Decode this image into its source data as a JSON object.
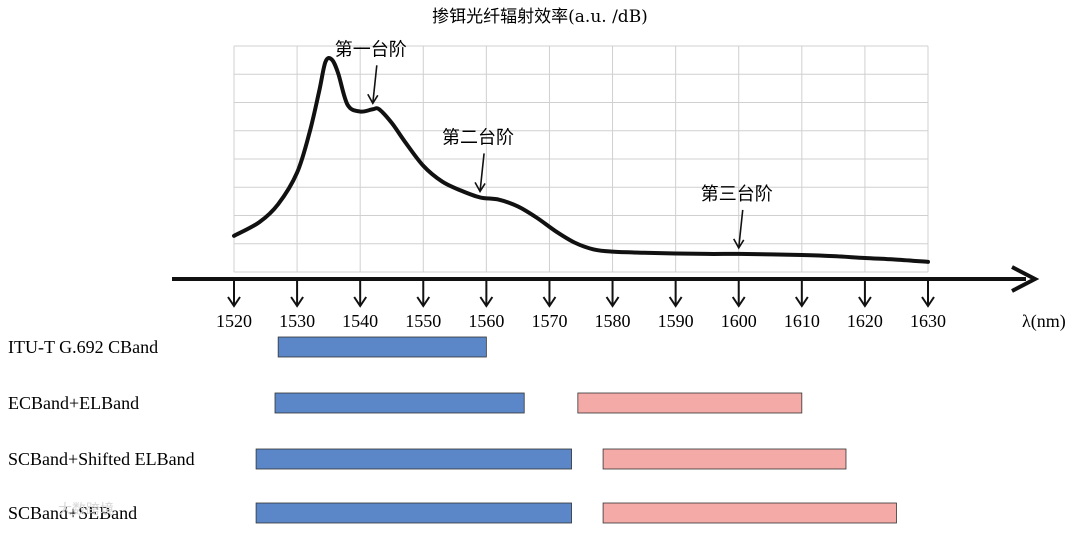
{
  "chart_data": {
    "type": "line",
    "title": "掺铒光纤辐射效率(a.u. /dB)",
    "xlabel": "λ(nm)",
    "ylabel": "",
    "x_ticks": [
      1520,
      1530,
      1540,
      1550,
      1560,
      1570,
      1580,
      1590,
      1600,
      1610,
      1620,
      1630
    ],
    "xlim": [
      1520,
      1630
    ],
    "ylim": [
      0,
      1
    ],
    "grid": true,
    "series": [
      {
        "x": [
          1520,
          1524,
          1527,
          1530,
          1532,
          1533.5,
          1534.5,
          1535.5,
          1536.5,
          1538,
          1540,
          1542,
          1543,
          1545,
          1547,
          1550,
          1553,
          1556,
          1559,
          1562,
          1565,
          1568,
          1571,
          1574,
          1577,
          1580,
          1585,
          1590,
          1595,
          1600,
          1605,
          1610,
          1615,
          1620,
          1625,
          1630
        ],
        "values": [
          0.16,
          0.22,
          0.3,
          0.44,
          0.62,
          0.8,
          0.93,
          0.94,
          0.88,
          0.74,
          0.71,
          0.72,
          0.72,
          0.66,
          0.58,
          0.47,
          0.4,
          0.36,
          0.33,
          0.32,
          0.29,
          0.24,
          0.18,
          0.13,
          0.1,
          0.09,
          0.085,
          0.082,
          0.08,
          0.08,
          0.078,
          0.075,
          0.07,
          0.062,
          0.055,
          0.045
        ]
      }
    ],
    "annotations": [
      {
        "text": "第一台阶",
        "x": 1542,
        "y": 0.72
      },
      {
        "text": "第二台阶",
        "x": 1559,
        "y": 0.33
      },
      {
        "text": "第三台阶",
        "x": 1600,
        "y": 0.08
      }
    ],
    "bands": [
      {
        "label": "ITU-T G.692 CBand",
        "segments": [
          {
            "start": 1527,
            "end": 1560,
            "color": "#5b87c9"
          }
        ]
      },
      {
        "label": "ECBand+ELBand",
        "segments": [
          {
            "start": 1526.5,
            "end": 1566,
            "color": "#5b87c9"
          },
          {
            "start": 1574.5,
            "end": 1610,
            "color": "#f4aaa7"
          }
        ]
      },
      {
        "label": "SCBand+Shifted ELBand",
        "segments": [
          {
            "start": 1523.5,
            "end": 1573.5,
            "color": "#5b87c9"
          },
          {
            "start": 1578.5,
            "end": 1617,
            "color": "#f4aaa7"
          }
        ]
      },
      {
        "label": "SCBand+SEBand",
        "segments": [
          {
            "start": 1523.5,
            "end": 1573.5,
            "color": "#5b87c9"
          },
          {
            "start": 1578.5,
            "end": 1625,
            "color": "#f4aaa7"
          }
        ]
      }
    ],
    "colors": {
      "curve": "#111111",
      "grid": "#d0d0d0",
      "blue": "#5b87c9",
      "pink": "#f4aaa7"
    }
  },
  "watermark": "大数跨境"
}
